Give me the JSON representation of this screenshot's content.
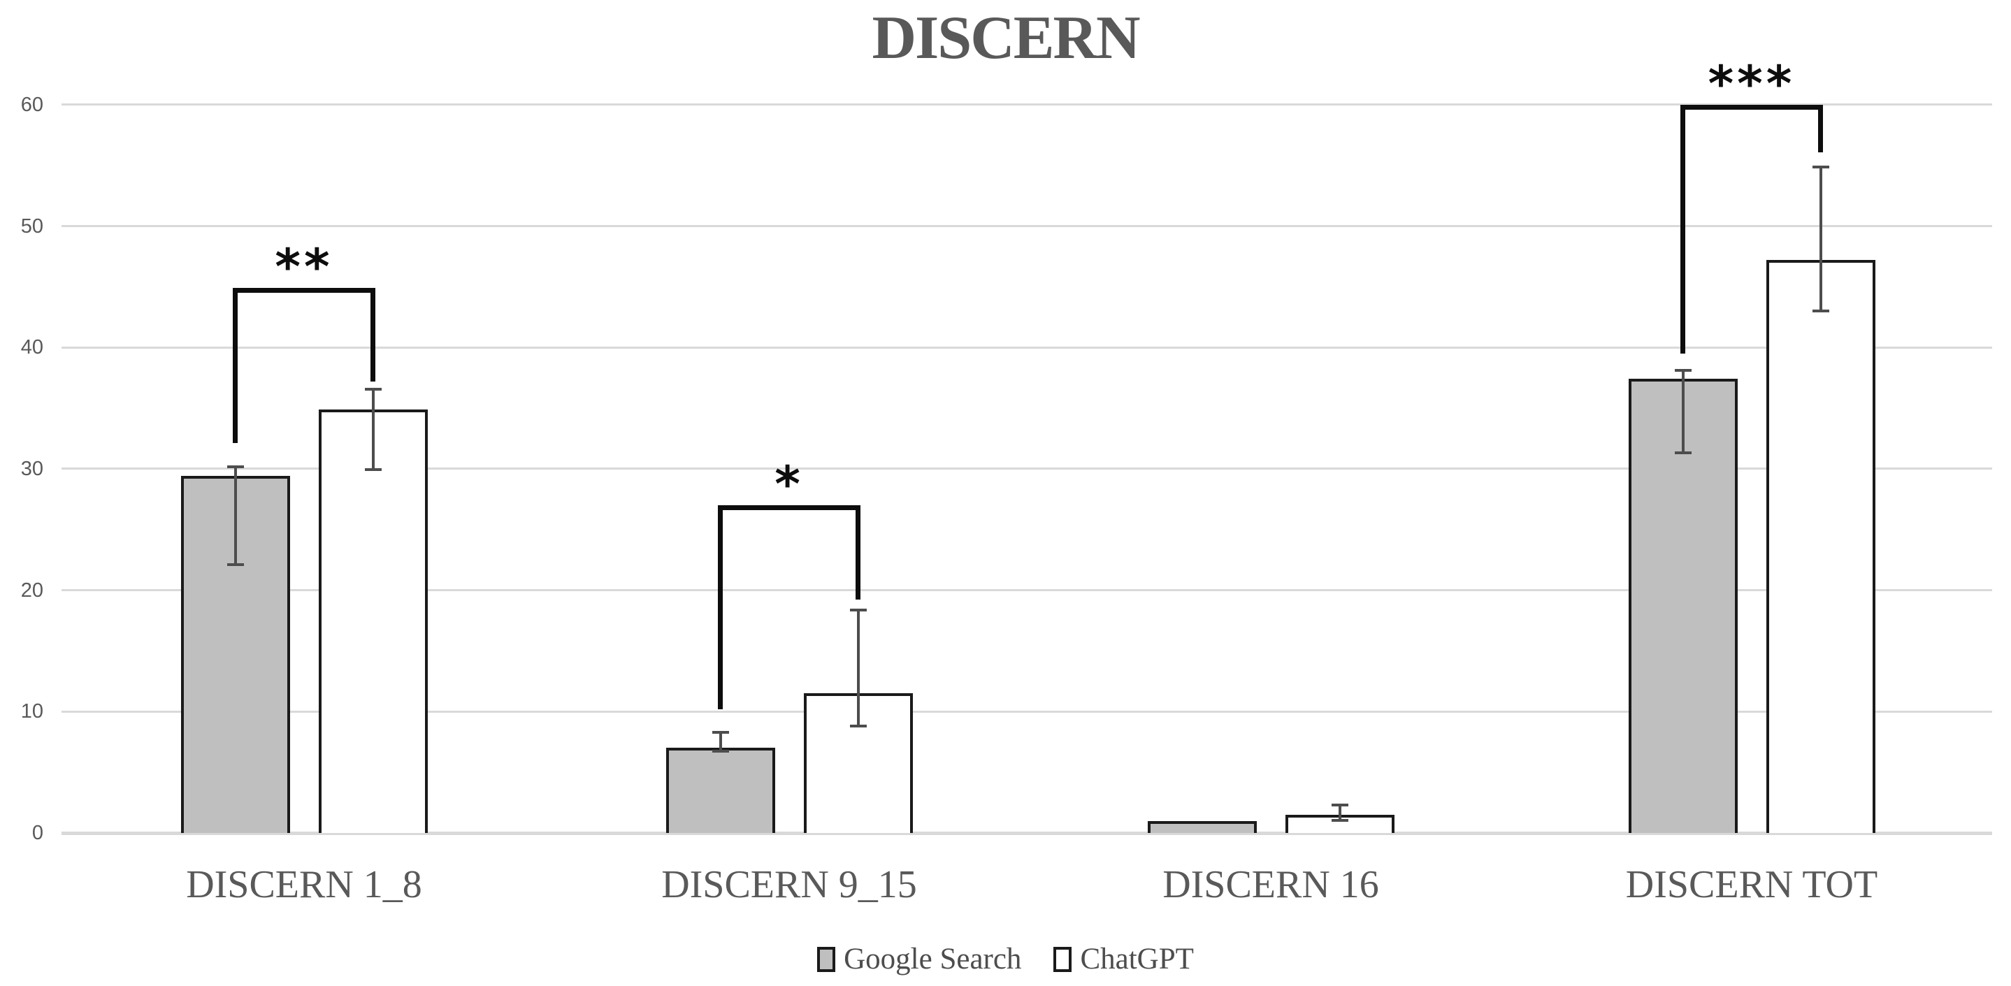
{
  "chart_data": {
    "type": "bar",
    "title": "DISCERN",
    "categories": [
      "DISCERN 1_8",
      "DISCERN 9_15",
      "DISCERN 16",
      "DISCERN TOT"
    ],
    "series": [
      {
        "name": "Google Search",
        "fill": "#bfbfbf",
        "values": [
          29.4,
          7.0,
          1.0,
          37.4
        ],
        "error_low": [
          22.0,
          6.6,
          null,
          31.2
        ],
        "error_high": [
          30.3,
          8.4,
          null,
          38.2
        ]
      },
      {
        "name": "ChatGPT",
        "fill": "#ffffff",
        "values": [
          34.9,
          11.5,
          1.5,
          47.2
        ],
        "error_low": [
          29.8,
          8.7,
          0.9,
          42.9
        ],
        "error_high": [
          36.7,
          18.5,
          2.4,
          55.0
        ]
      }
    ],
    "significance": [
      {
        "group_index": 0,
        "label": "**",
        "bracket_y": 44.5,
        "left_drop_to": 32.1,
        "right_drop_to": 37.2
      },
      {
        "group_index": 1,
        "label": "*",
        "bracket_y": 26.6,
        "left_drop_to": 10.2,
        "right_drop_to": 19.2
      },
      {
        "group_index": 3,
        "label": "***",
        "bracket_y": 59.6,
        "left_drop_to": 39.5,
        "right_drop_to": 56.1
      }
    ],
    "ylim": [
      0,
      60
    ],
    "y_ticks": [
      0,
      10,
      20,
      30,
      40,
      50,
      60
    ],
    "grid": "horizontal",
    "legend_position": "bottom",
    "colors": {
      "grid": "#d9d9d9",
      "axis_text": "#595959",
      "title_text": "#595959",
      "bar_border": "#1a1a1a",
      "error_bar": "#4d4d4d",
      "bracket": "#0d0d0d",
      "legend_text": "#4d4d4d"
    }
  }
}
